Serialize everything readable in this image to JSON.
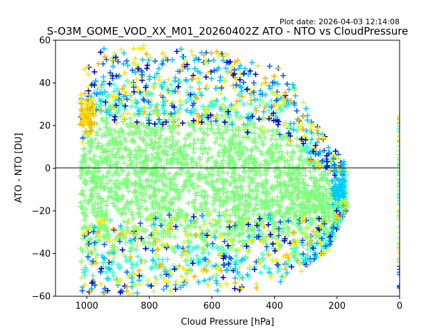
{
  "plot_date": "Plot date: 2026-04-03 12:14:08",
  "chart_data": {
    "type": "scatter",
    "title": "S-O3M_GOME_VOD_XX_M01_20260402Z ATO - NTO vs CloudPressure",
    "xlabel": "Cloud Pressure [hPa]",
    "ylabel": "ATO - NTO [DU]",
    "xlim": [
      1100,
      0
    ],
    "ylim": [
      -60,
      60
    ],
    "xticks": [
      1000,
      800,
      600,
      400,
      200,
      0
    ],
    "yticks": [
      -60,
      -40,
      -20,
      0,
      20,
      40,
      60
    ],
    "reference_line_y": 0,
    "marker": "+",
    "colormap": [
      "#0000cc",
      "#0060ff",
      "#00c8ff",
      "#3dffd0",
      "#7dff7a",
      "#c8ff30",
      "#ffe600",
      "#ffb000"
    ],
    "series_color_hint": {
      "dense_core": "#7dff7a",
      "mid_density": "#3dffd0",
      "outliers": [
        "#00c8ff",
        "#0060ff",
        "#0000cc",
        "#ffe600",
        "#ffb000",
        "#c8ff30"
      ]
    },
    "envelope": [
      {
        "x": 1020,
        "y_low": -58,
        "y_high": 45
      },
      {
        "x": 950,
        "y_low": -60,
        "y_high": 56
      },
      {
        "x": 900,
        "y_low": -60,
        "y_high": 58
      },
      {
        "x": 800,
        "y_low": -58,
        "y_high": 58
      },
      {
        "x": 700,
        "y_low": -57,
        "y_high": 56
      },
      {
        "x": 600,
        "y_low": -58,
        "y_high": 58
      },
      {
        "x": 500,
        "y_low": -57,
        "y_high": 50
      },
      {
        "x": 400,
        "y_low": -55,
        "y_high": 50
      },
      {
        "x": 330,
        "y_low": -50,
        "y_high": 40
      },
      {
        "x": 280,
        "y_low": -45,
        "y_high": 22
      },
      {
        "x": 230,
        "y_low": -40,
        "y_high": 15
      },
      {
        "x": 200,
        "y_low": -30,
        "y_high": 8
      },
      {
        "x": 170,
        "y_low": -20,
        "y_high": 5
      }
    ],
    "edge_column_x": 0,
    "edge_column_y_range": [
      -57,
      26
    ]
  }
}
